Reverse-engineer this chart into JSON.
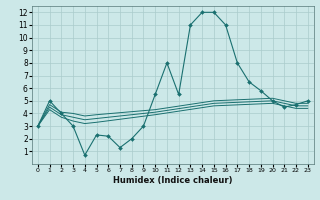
{
  "xlabel": "Humidex (Indice chaleur)",
  "xlim": [
    -0.5,
    23.5
  ],
  "ylim": [
    0,
    12.5
  ],
  "xticks": [
    0,
    1,
    2,
    3,
    4,
    5,
    6,
    7,
    8,
    9,
    10,
    11,
    12,
    13,
    14,
    15,
    16,
    17,
    18,
    19,
    20,
    21,
    22,
    23
  ],
  "yticks": [
    1,
    2,
    3,
    4,
    5,
    6,
    7,
    8,
    9,
    10,
    11,
    12
  ],
  "bg_color": "#cce8e8",
  "grid_color": "#aacccc",
  "line_color": "#1a7070",
  "lines": [
    {
      "x": [
        0,
        1,
        2,
        3,
        4,
        5,
        6,
        7,
        8,
        9,
        10,
        11,
        12,
        13,
        14,
        15,
        16,
        17,
        18,
        19,
        20,
        21,
        22,
        23
      ],
      "y": [
        3,
        5,
        4,
        3,
        0.7,
        2.3,
        2.2,
        1.3,
        2,
        3,
        5.5,
        8,
        5.5,
        11,
        12,
        12,
        11,
        8,
        6.5,
        5.8,
        5,
        4.5,
        4.7,
        5
      ],
      "marker": "D",
      "markersize": 2.0,
      "linewidth": 0.8
    },
    {
      "x": [
        0,
        1,
        2,
        3,
        4,
        5,
        10,
        15,
        20,
        21,
        22,
        23
      ],
      "y": [
        3.0,
        4.7,
        4.1,
        4.0,
        3.8,
        3.9,
        4.3,
        5.0,
        5.2,
        5.0,
        4.8,
        4.8
      ],
      "marker": null,
      "linewidth": 0.7
    },
    {
      "x": [
        0,
        1,
        2,
        3,
        4,
        5,
        10,
        15,
        20,
        21,
        22,
        23
      ],
      "y": [
        3.0,
        4.5,
        3.9,
        3.7,
        3.5,
        3.6,
        4.1,
        4.8,
        5.0,
        4.8,
        4.6,
        4.6
      ],
      "marker": null,
      "linewidth": 0.7
    },
    {
      "x": [
        0,
        1,
        2,
        3,
        4,
        5,
        10,
        15,
        20,
        21,
        22,
        23
      ],
      "y": [
        3.0,
        4.3,
        3.7,
        3.4,
        3.2,
        3.3,
        3.9,
        4.6,
        4.8,
        4.6,
        4.4,
        4.4
      ],
      "marker": null,
      "linewidth": 0.7
    }
  ]
}
